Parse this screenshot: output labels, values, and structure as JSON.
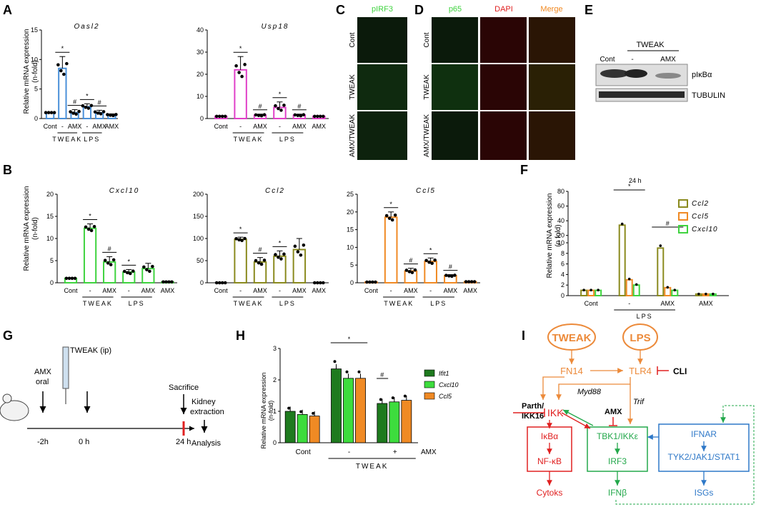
{
  "panel_letters": {
    "A": "A",
    "B": "B",
    "C": "C",
    "D": "D",
    "E": "E",
    "F": "F",
    "G": "G",
    "H": "H",
    "I": "I"
  },
  "colors": {
    "blue": "#4a90d9",
    "magenta": "#e040c8",
    "green": "#3fd33f",
    "olive": "#8a8a1e",
    "orange": "#f08a24",
    "darkgreen": "#1e7a1e",
    "lightgreen": "#3ddc3d",
    "red": "#e02020",
    "schem_orange": "#ec8a3a",
    "schem_green": "#23a84b",
    "schem_blue": "#2e78c8"
  },
  "common": {
    "ylabel_A": "Relative mRNA expression",
    "ylabel_A2": "(n-fold)",
    "ylabel_F": "Relative mRNA expression",
    "ylabel_F2": "(n fold)",
    "cont": "Cont",
    "minus": "-",
    "plus": "+",
    "amx": "AMX",
    "tweak": "TWEAK",
    "lps": "LPS"
  },
  "chart_data": [
    {
      "panel": "A",
      "type": "bar",
      "title": "Oasl2",
      "categories": [
        "Cont",
        "-",
        "AMX",
        "-",
        "AMX",
        "AMX"
      ],
      "groups": [
        "TWEAK",
        "LPS"
      ],
      "values": [
        1,
        8.5,
        1,
        2,
        1,
        0.6
      ],
      "errors": [
        0,
        2,
        0.5,
        0.5,
        0.4,
        0.2
      ],
      "ylim": [
        0,
        15
      ],
      "yticks": [
        0,
        5,
        10,
        15
      ],
      "color": "#4a90d9",
      "significance": [
        "*",
        "#",
        "*",
        "#"
      ]
    },
    {
      "panel": "A",
      "type": "bar",
      "title": "Usp18",
      "categories": [
        "Cont",
        "-",
        "AMX",
        "-",
        "AMX",
        "AMX"
      ],
      "groups": [
        "TWEAK",
        "LPS"
      ],
      "values": [
        1,
        22,
        1.5,
        5,
        1.5,
        1
      ],
      "errors": [
        0,
        6,
        0.5,
        2.5,
        0.5,
        0
      ],
      "ylim": [
        0,
        40
      ],
      "yticks": [
        0,
        10,
        20,
        30,
        40
      ],
      "color": "#e040c8",
      "significance": [
        "*",
        "#",
        "*",
        "#"
      ]
    },
    {
      "panel": "B",
      "type": "bar",
      "title": "Cxcl10",
      "categories": [
        "Cont",
        "-",
        "AMX",
        "-",
        "AMX",
        "AMX"
      ],
      "groups": [
        "TWEAK",
        "LPS"
      ],
      "values": [
        1,
        12.3,
        4.7,
        2.4,
        3.2,
        0.2
      ],
      "errors": [
        0,
        1,
        1.2,
        0.6,
        1.2,
        0
      ],
      "ylim": [
        0,
        20
      ],
      "yticks": [
        0,
        5,
        10,
        15,
        20
      ],
      "color": "#3fd33f",
      "significance": [
        "*",
        "#",
        "*"
      ]
    },
    {
      "panel": "B",
      "type": "bar",
      "title": "Ccl2",
      "categories": [
        "Cont",
        "-",
        "AMX",
        "-",
        "AMX",
        "AMX"
      ],
      "groups": [
        "TWEAK",
        "LPS"
      ],
      "values": [
        0,
        98,
        47,
        60,
        75,
        0
      ],
      "errors": [
        0,
        5,
        10,
        12,
        25,
        0
      ],
      "ylim": [
        0,
        200
      ],
      "yticks": [
        0,
        50,
        100,
        150,
        200
      ],
      "color": "#8a8a1e",
      "significance": [
        "*",
        "#",
        "*"
      ]
    },
    {
      "panel": "B",
      "type": "bar",
      "title": "Ccl5",
      "categories": [
        "Cont",
        "-",
        "AMX",
        "-",
        "AMX",
        "AMX"
      ],
      "groups": [
        "TWEAK",
        "LPS"
      ],
      "values": [
        0.2,
        18.5,
        3.3,
        6,
        2,
        0.3
      ],
      "errors": [
        0,
        1.5,
        0.8,
        1,
        0.3,
        0
      ],
      "ylim": [
        0,
        25
      ],
      "yticks": [
        0,
        5,
        10,
        15,
        20,
        25
      ],
      "color": "#f08a24",
      "significance": [
        "*",
        "#",
        "*",
        "#"
      ]
    },
    {
      "panel": "F",
      "type": "bar",
      "title": "24 h",
      "categories": [
        "Cont",
        "-",
        "AMX",
        "AMX"
      ],
      "groups": [
        "LPS"
      ],
      "series": [
        {
          "name": "Ccl2",
          "values": [
            1,
            34,
            9,
            0.3
          ]
        },
        {
          "name": "Ccl5",
          "values": [
            1,
            3,
            1.5,
            0.3
          ]
        },
        {
          "name": "Cxcl10",
          "values": [
            1,
            2,
            1,
            0.3
          ]
        }
      ],
      "yticks": [
        "0",
        "2",
        "4",
        "6",
        "8",
        "10",
        "20",
        "40",
        "60",
        "80"
      ],
      "significance": [
        "*",
        "#"
      ]
    },
    {
      "panel": "H",
      "type": "bar",
      "categories": [
        "Cont",
        "-",
        "+"
      ],
      "groups": [
        "TWEAK"
      ],
      "extra_label": "AMX",
      "series": [
        {
          "name": "Ifit1",
          "values": [
            1,
            2.35,
            1.25
          ]
        },
        {
          "name": "Cxcl10",
          "values": [
            0.9,
            2.05,
            1.3
          ]
        },
        {
          "name": "Ccl5",
          "values": [
            0.85,
            2.05,
            1.35
          ]
        }
      ],
      "ylim": [
        0,
        3
      ],
      "yticks": [
        0,
        1,
        2,
        3
      ],
      "ylabel": "Relative mRNA expression",
      "ylabel2": "(n-fold)",
      "significance": [
        "*",
        "#"
      ]
    }
  ],
  "panelC": {
    "title": "pIRF3",
    "rows": [
      "Cont",
      "TWEAK",
      "AMX/TWEAK"
    ]
  },
  "panelD": {
    "cols": [
      "p65",
      "DAPI",
      "Merge"
    ],
    "rows": [
      "Cont",
      "TWEAK",
      "AMX/TWEAK"
    ]
  },
  "panelE": {
    "header": "TWEAK",
    "lanes": [
      "Cont",
      "-",
      "AMX"
    ],
    "bands": [
      "pIκBα",
      "TUBULIN"
    ]
  },
  "panelG": {
    "amx": "AMX",
    "oral": "oral",
    "tweak_ip": "TWEAK (ip)",
    "sacrifice": "Sacrifice",
    "kidney": "Kidney",
    "extraction": "extraction",
    "analysis": "Analysis",
    "t1": "-2h",
    "t2": "0 h",
    "t3": "24 h"
  },
  "panelI": {
    "tweak": "TWEAK",
    "lps": "LPS",
    "fn14": "FN14",
    "tlr4": "TLR4",
    "cli": "CLI",
    "myd88": "Myd88",
    "trif": "Trif",
    "parth": "Parth/",
    "ikk16": "IKK16",
    "ikk": "IKK",
    "amx": "AMX",
    "tbk": "TBK1/IKKε",
    "ifnar": "IFNAR",
    "ikba": "IκBα",
    "nfkb": "NF-κB",
    "irf3": "IRF3",
    "tyk": "TYK2/JAK1/STAT1",
    "cytoks": "Cytoks",
    "ifnb": "IFNβ",
    "isgs": "ISGs"
  }
}
